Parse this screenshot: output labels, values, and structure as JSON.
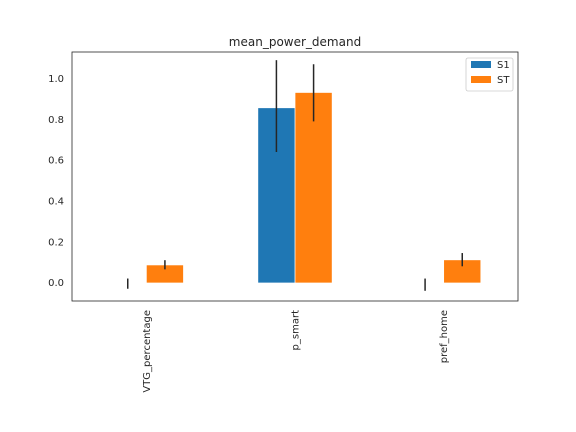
{
  "chart_data": {
    "type": "bar",
    "title": "mean_power_demand",
    "xlabel": "",
    "ylabel": "",
    "categories": [
      "VTG_percentage",
      "p_smart",
      "pref_home"
    ],
    "ylim": [
      -0.09,
      1.13
    ],
    "yticks": [
      0.0,
      0.2,
      0.4,
      0.6,
      0.8,
      1.0
    ],
    "ytick_labels": [
      "0.0",
      "0.2",
      "0.4",
      "0.6",
      "0.8",
      "1.0"
    ],
    "series": [
      {
        "name": "S1",
        "color": "#1f77b4",
        "values": [
          0.0,
          0.855,
          0.0
        ],
        "err_low": [
          -0.03,
          0.64,
          -0.04
        ],
        "err_high": [
          0.02,
          1.09,
          0.02
        ]
      },
      {
        "name": "ST",
        "color": "#ff7f0e",
        "values": [
          0.085,
          0.93,
          0.11
        ],
        "err_low": [
          0.065,
          0.79,
          0.08
        ],
        "err_high": [
          0.11,
          1.07,
          0.145
        ]
      }
    ],
    "legend": "top-right",
    "grid": false
  }
}
